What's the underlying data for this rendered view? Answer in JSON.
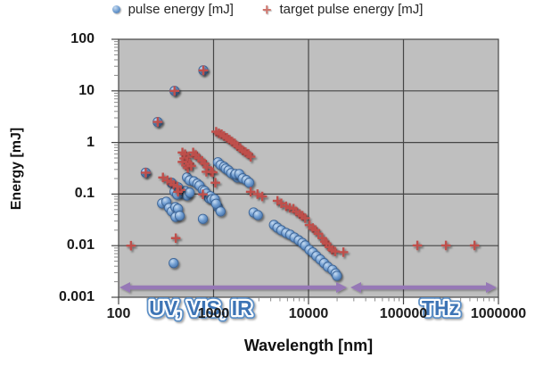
{
  "legend": {
    "series1_label": "pulse energy [mJ]",
    "series2_label": "target pulse energy [mJ]",
    "plus_glyph": "+"
  },
  "axes": {
    "y_title": "Energy [mJ]",
    "x_title": "Wavelength [nm]",
    "y_ticks": [
      "100",
      "10",
      "1",
      "0.1",
      "0.01",
      "0.001"
    ],
    "x_ticks": [
      "100",
      "1000",
      "10000",
      "100000",
      "1000000"
    ]
  },
  "region_labels": {
    "left": "UV, VIS, IR",
    "right": "THz"
  },
  "colors": {
    "pulse_marker": "#4f81bd",
    "pulse_marker_light": "#c6dbf1",
    "pulse_marker_edge": "#3e6596",
    "target_marker": "#bf4f4c",
    "plot_bg": "#bfbfbf",
    "grid": "#454545",
    "minor_tick": "#8a8a8a",
    "arrow": "#9678b6",
    "region_text_fill": "#3d74b5",
    "region_text_rim": "#5c8fc6"
  },
  "chart_data": {
    "type": "scatter",
    "x_scale": "log",
    "y_scale": "log",
    "x_range": [
      100,
      1000000
    ],
    "y_range": [
      0.001,
      100
    ],
    "xlabel": "Wavelength [nm]",
    "ylabel": "Energy [mJ]",
    "grid": true,
    "legend_position": "top",
    "series": [
      {
        "name": "pulse energy [mJ]",
        "marker": "circle",
        "color": "#4f81bd",
        "points": [
          [
            193,
            0.26
          ],
          [
            258,
            2.5
          ],
          [
            388,
            10
          ],
          [
            780,
            25
          ],
          [
            287,
            0.066
          ],
          [
            318,
            0.071
          ],
          [
            340,
            0.054
          ],
          [
            363,
            0.046
          ],
          [
            396,
            0.056
          ],
          [
            422,
            0.052
          ],
          [
            398,
            0.036
          ],
          [
            440,
            0.038
          ],
          [
            470,
            0.102
          ],
          [
            502,
            0.115
          ],
          [
            525,
            0.094
          ],
          [
            560,
            0.107
          ],
          [
            362,
            0.165
          ],
          [
            388,
            0.111
          ],
          [
            414,
            0.098
          ],
          [
            424,
            0.135
          ],
          [
            525,
            0.21
          ],
          [
            560,
            0.185
          ],
          [
            620,
            0.177
          ],
          [
            675,
            0.159
          ],
          [
            712,
            0.146
          ],
          [
            772,
            0.12
          ],
          [
            805,
            0.115
          ],
          [
            840,
            0.102
          ],
          [
            898,
            0.083
          ],
          [
            927,
            0.091
          ],
          [
            955,
            0.08
          ],
          [
            1030,
            0.08
          ],
          [
            1110,
            0.056
          ],
          [
            772,
            0.033
          ],
          [
            1063,
            0.065
          ],
          [
            1185,
            0.046
          ],
          [
            1113,
            0.414
          ],
          [
            1185,
            0.367
          ],
          [
            1290,
            0.338
          ],
          [
            1345,
            0.312
          ],
          [
            1440,
            0.287
          ],
          [
            1535,
            0.255
          ],
          [
            1675,
            0.235
          ],
          [
            1780,
            0.209
          ],
          [
            1705,
            0.245
          ],
          [
            1865,
            0.245
          ],
          [
            2030,
            0.202
          ],
          [
            2215,
            0.187
          ],
          [
            2375,
            0.166
          ],
          [
            2640,
            0.044
          ],
          [
            2930,
            0.039
          ],
          [
            4325,
            0.0253
          ],
          [
            4710,
            0.0223
          ],
          [
            5170,
            0.0199
          ],
          [
            5810,
            0.0177
          ],
          [
            6420,
            0.0163
          ],
          [
            7110,
            0.0144
          ],
          [
            7900,
            0.0127
          ],
          [
            8620,
            0.0113
          ],
          [
            9230,
            0.0101
          ],
          [
            10230,
            0.0083
          ],
          [
            11100,
            0.0074
          ],
          [
            12100,
            0.0063
          ],
          [
            13300,
            0.0054
          ],
          [
            14600,
            0.0046
          ],
          [
            16000,
            0.0039
          ],
          [
            17900,
            0.0034
          ],
          [
            19300,
            0.0029
          ],
          [
            19900,
            0.0026
          ],
          [
            380,
            0.0046
          ]
        ]
      },
      {
        "name": "target pulse energy [mJ]",
        "marker": "plus",
        "color": "#bf4f4c",
        "points": [
          [
            193,
            0.26
          ],
          [
            258,
            2.5
          ],
          [
            388,
            10
          ],
          [
            780,
            25
          ],
          [
            135,
            0.01
          ],
          [
            400,
            0.014
          ],
          [
            140000,
            0.0101
          ],
          [
            280000,
            0.0101
          ],
          [
            560000,
            0.0101
          ],
          [
            293,
            0.21
          ],
          [
            327,
            0.185
          ],
          [
            356,
            0.17
          ],
          [
            380,
            0.152
          ],
          [
            414,
            0.14
          ],
          [
            450,
            0.12
          ],
          [
            422,
            0.111
          ],
          [
            772,
            0.099
          ],
          [
            470,
            0.64
          ],
          [
            502,
            0.59
          ],
          [
            545,
            0.53
          ],
          [
            490,
            0.49
          ],
          [
            525,
            0.43
          ],
          [
            470,
            0.42
          ],
          [
            512,
            0.36
          ],
          [
            558,
            0.39
          ],
          [
            535,
            0.32
          ],
          [
            582,
            0.35
          ],
          [
            610,
            0.64
          ],
          [
            650,
            0.57
          ],
          [
            695,
            0.5
          ],
          [
            757,
            0.44
          ],
          [
            805,
            0.39
          ],
          [
            860,
            0.33
          ],
          [
            840,
            0.27
          ],
          [
            940,
            0.27
          ],
          [
            980,
            0.265
          ],
          [
            1045,
            0.166
          ],
          [
            1065,
            1.62
          ],
          [
            1140,
            1.5
          ],
          [
            1215,
            1.45
          ],
          [
            1290,
            1.33
          ],
          [
            1385,
            1.23
          ],
          [
            1475,
            1.13
          ],
          [
            1570,
            1.04
          ],
          [
            1675,
            0.96
          ],
          [
            1780,
            0.85
          ],
          [
            1910,
            0.78
          ],
          [
            2030,
            0.7
          ],
          [
            2170,
            0.65
          ],
          [
            2330,
            0.6
          ],
          [
            2460,
            0.53
          ],
          [
            2460,
            0.111
          ],
          [
            2900,
            0.1
          ],
          [
            3260,
            0.09
          ],
          [
            4710,
            0.074
          ],
          [
            5170,
            0.066
          ],
          [
            5810,
            0.058
          ],
          [
            6360,
            0.054
          ],
          [
            6940,
            0.052
          ],
          [
            7430,
            0.046
          ],
          [
            8060,
            0.041
          ],
          [
            8620,
            0.038
          ],
          [
            9230,
            0.034
          ],
          [
            10230,
            0.025
          ],
          [
            11100,
            0.022
          ],
          [
            11870,
            0.02
          ],
          [
            12700,
            0.017
          ],
          [
            13950,
            0.014
          ],
          [
            14870,
            0.012
          ],
          [
            15500,
            0.011
          ],
          [
            16600,
            0.0094
          ],
          [
            17700,
            0.0083
          ],
          [
            19100,
            0.0077
          ],
          [
            23300,
            0.0075
          ]
        ]
      }
    ]
  }
}
